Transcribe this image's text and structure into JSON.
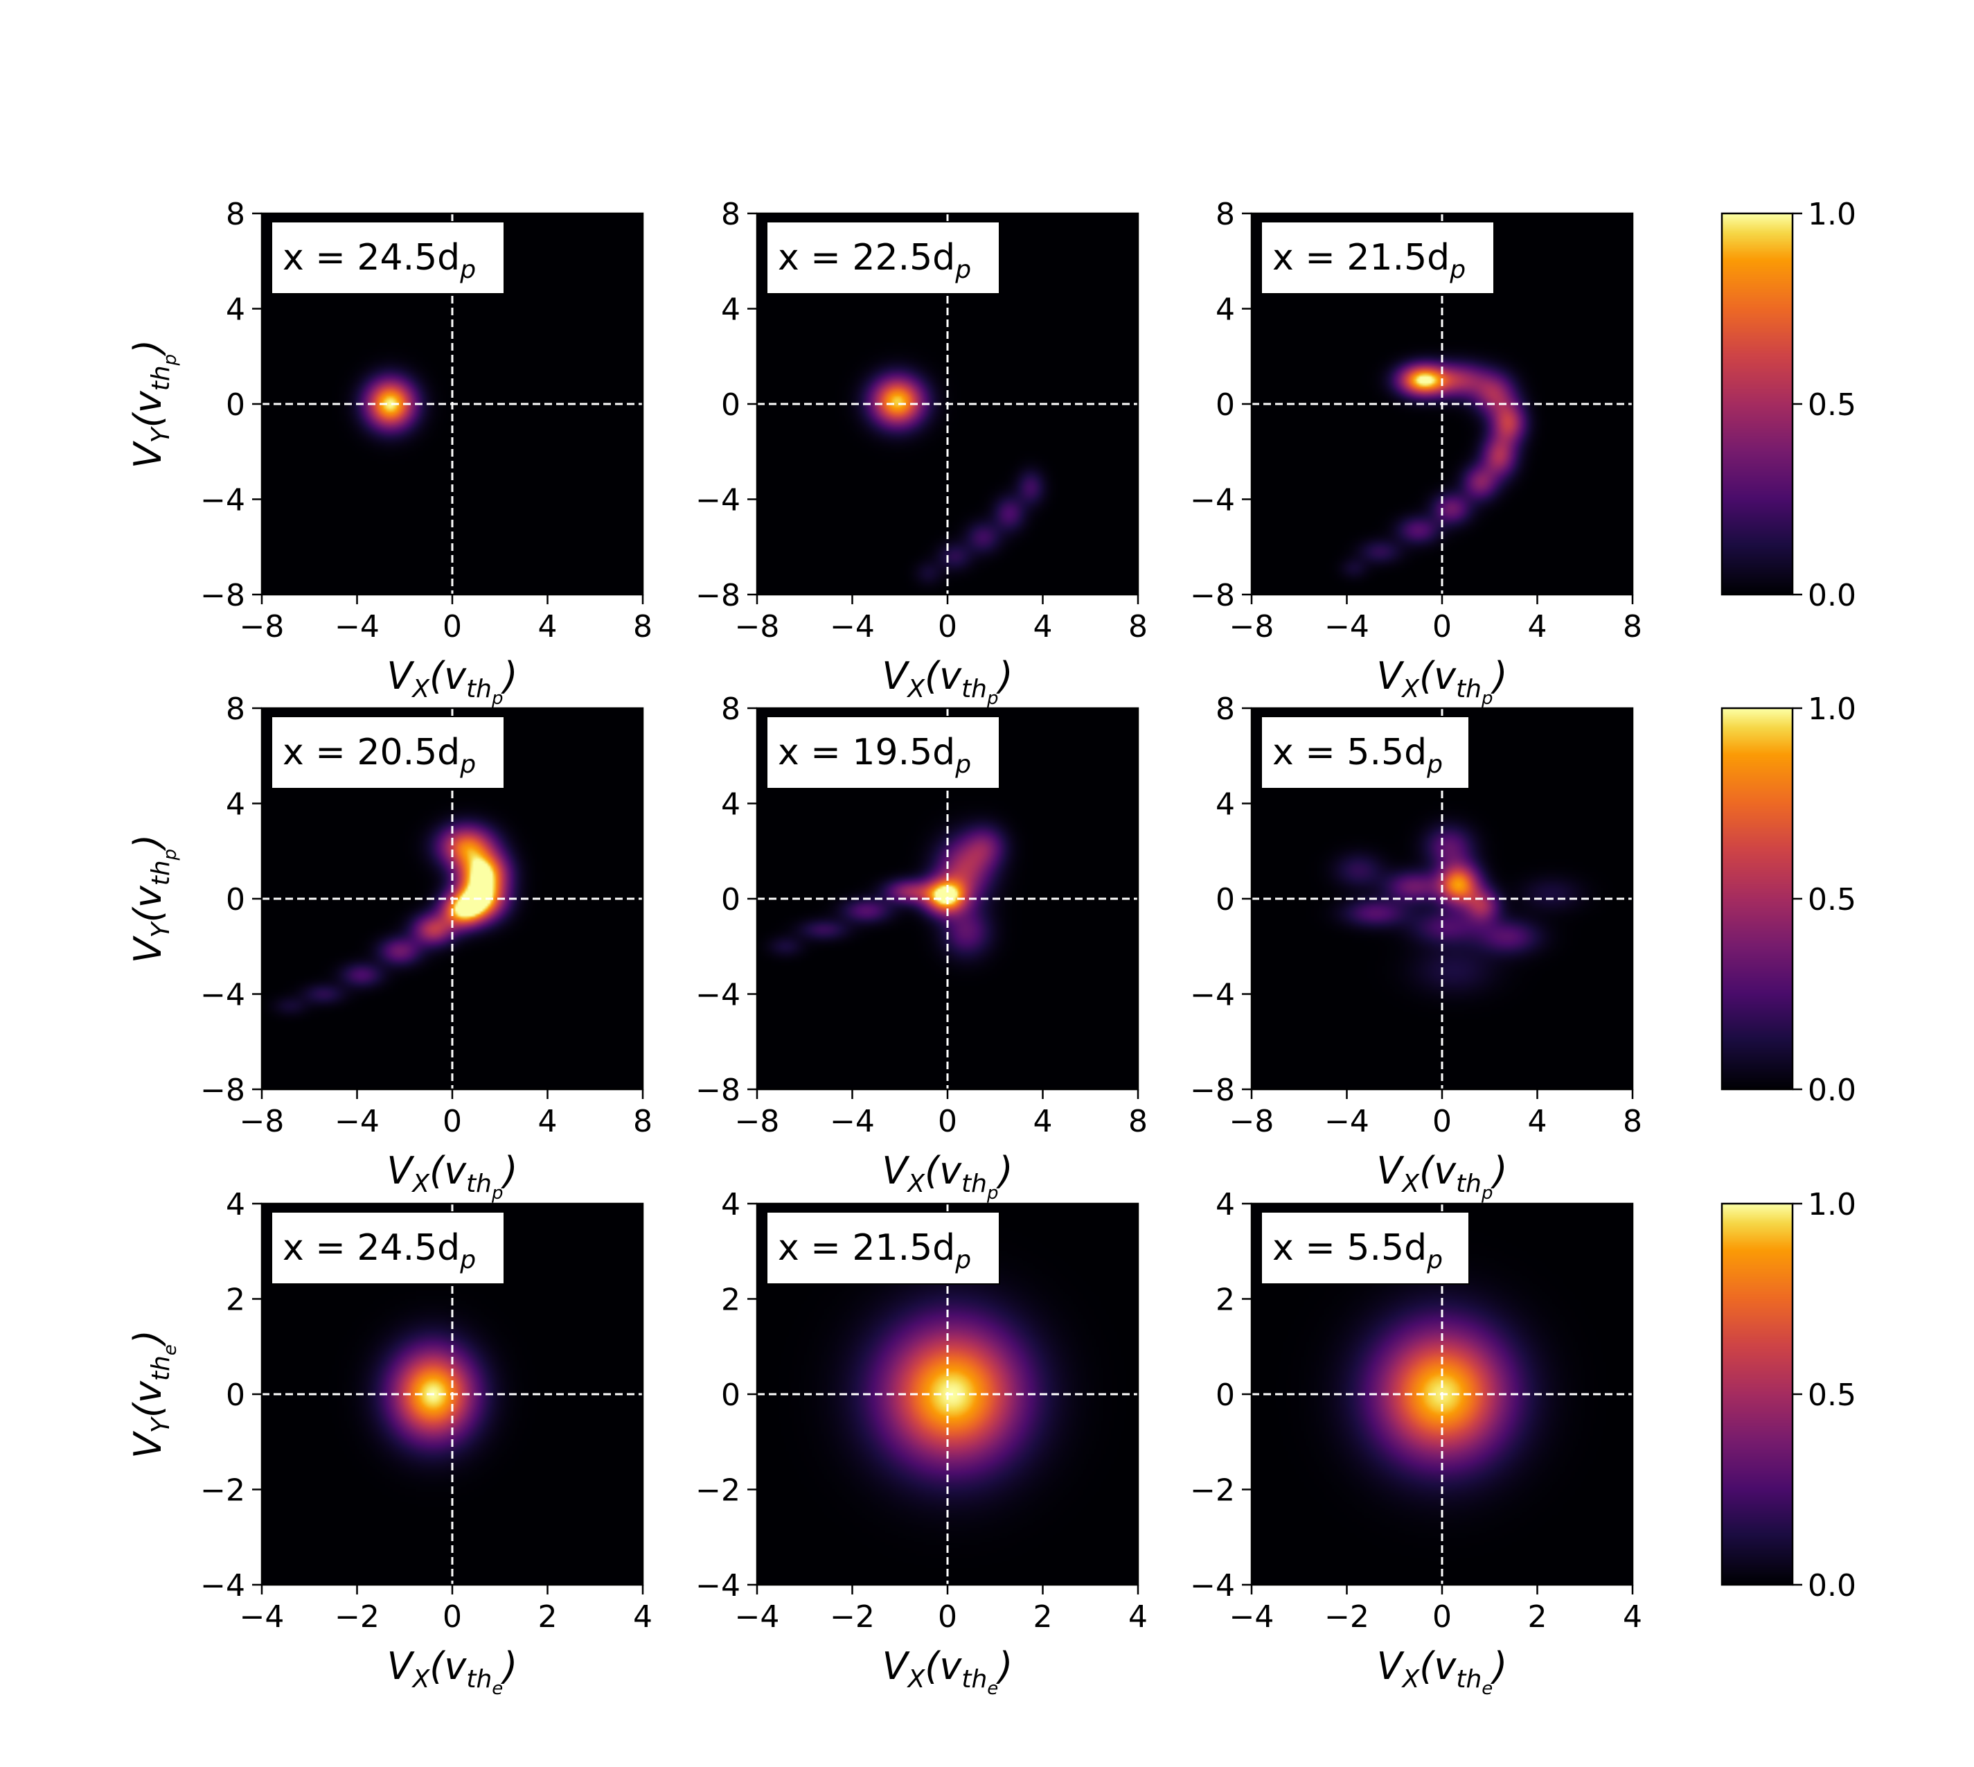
{
  "chart_data": {
    "type": "heatmap",
    "colormap": "inferno",
    "panels": [
      {
        "row": 0,
        "col": 0,
        "label": "x = 24.5d",
        "label_sub": "p",
        "species": "p",
        "xlim": [
          -8,
          8
        ],
        "ylim": [
          -8,
          8
        ],
        "xticks": [
          "−8",
          "−4",
          "0",
          "4",
          "8"
        ],
        "yticks": [
          "−8",
          "−4",
          "0",
          "4",
          "8"
        ],
        "blobs": [
          {
            "x": -2.6,
            "y": 0.0,
            "sx": 0.7,
            "sy": 0.7,
            "a": 1.0
          }
        ]
      },
      {
        "row": 0,
        "col": 1,
        "label": "x = 22.5d",
        "label_sub": "p",
        "species": "p",
        "xlim": [
          -8,
          8
        ],
        "ylim": [
          -8,
          8
        ],
        "xticks": [
          "−8",
          "−4",
          "0",
          "4",
          "8"
        ],
        "yticks": [
          "−8",
          "−4",
          "0",
          "4",
          "8"
        ],
        "blobs": [
          {
            "x": -2.1,
            "y": 0.1,
            "sx": 0.75,
            "sy": 0.7,
            "a": 0.95
          },
          {
            "x": 3.5,
            "y": -3.5,
            "sx": 0.4,
            "sy": 0.5,
            "a": 0.22
          },
          {
            "x": 2.6,
            "y": -4.6,
            "sx": 0.45,
            "sy": 0.5,
            "a": 0.25
          },
          {
            "x": 1.5,
            "y": -5.6,
            "sx": 0.5,
            "sy": 0.45,
            "a": 0.22
          },
          {
            "x": 0.3,
            "y": -6.4,
            "sx": 0.5,
            "sy": 0.4,
            "a": 0.17
          },
          {
            "x": -0.8,
            "y": -7.1,
            "sx": 0.4,
            "sy": 0.35,
            "a": 0.1
          }
        ]
      },
      {
        "row": 0,
        "col": 2,
        "label": "x = 21.5d",
        "label_sub": "p",
        "species": "p",
        "xlim": [
          -8,
          8
        ],
        "ylim": [
          -8,
          8
        ],
        "xticks": [
          "−8",
          "−4",
          "0",
          "4",
          "8"
        ],
        "yticks": [
          "−8",
          "−4",
          "0",
          "4",
          "8"
        ],
        "blobs": [
          {
            "x": -0.8,
            "y": 1.0,
            "sx": 0.7,
            "sy": 0.45,
            "a": 1.0
          },
          {
            "x": 0.8,
            "y": 1.0,
            "sx": 0.8,
            "sy": 0.5,
            "a": 0.45
          },
          {
            "x": 2.2,
            "y": 0.4,
            "sx": 0.6,
            "sy": 0.6,
            "a": 0.45
          },
          {
            "x": 2.8,
            "y": -0.8,
            "sx": 0.5,
            "sy": 0.6,
            "a": 0.55
          },
          {
            "x": 2.4,
            "y": -2.2,
            "sx": 0.5,
            "sy": 0.6,
            "a": 0.5
          },
          {
            "x": 1.6,
            "y": -3.3,
            "sx": 0.5,
            "sy": 0.5,
            "a": 0.4
          },
          {
            "x": 0.4,
            "y": -4.4,
            "sx": 0.55,
            "sy": 0.45,
            "a": 0.35
          },
          {
            "x": -1.0,
            "y": -5.3,
            "sx": 0.6,
            "sy": 0.4,
            "a": 0.28
          },
          {
            "x": -2.6,
            "y": -6.2,
            "sx": 0.6,
            "sy": 0.35,
            "a": 0.18
          },
          {
            "x": -3.7,
            "y": -6.9,
            "sx": 0.4,
            "sy": 0.3,
            "a": 0.1
          }
        ]
      },
      {
        "row": 1,
        "col": 0,
        "label": "x = 20.5d",
        "label_sub": "p",
        "species": "p",
        "xlim": [
          -8,
          8
        ],
        "ylim": [
          -8,
          8
        ],
        "xticks": [
          "−8",
          "−4",
          "0",
          "4",
          "8"
        ],
        "yticks": [
          "−8",
          "−4",
          "0",
          "4",
          "8"
        ],
        "blobs": [
          {
            "x": 0.6,
            "y": 2.2,
            "sx": 0.8,
            "sy": 0.6,
            "a": 0.75
          },
          {
            "x": 1.3,
            "y": 1.1,
            "sx": 0.7,
            "sy": 0.6,
            "a": 0.9
          },
          {
            "x": 1.2,
            "y": 0.0,
            "sx": 0.7,
            "sy": 0.6,
            "a": 0.95
          },
          {
            "x": 0.4,
            "y": -0.5,
            "sx": 0.6,
            "sy": 0.5,
            "a": 0.8
          },
          {
            "x": -0.8,
            "y": -1.3,
            "sx": 0.6,
            "sy": 0.45,
            "a": 0.55
          },
          {
            "x": -2.2,
            "y": -2.2,
            "sx": 0.6,
            "sy": 0.4,
            "a": 0.35
          },
          {
            "x": -3.8,
            "y": -3.2,
            "sx": 0.6,
            "sy": 0.35,
            "a": 0.25
          },
          {
            "x": -5.4,
            "y": -4.0,
            "sx": 0.6,
            "sy": 0.3,
            "a": 0.17
          },
          {
            "x": -6.8,
            "y": -4.5,
            "sx": 0.5,
            "sy": 0.28,
            "a": 0.1
          }
        ]
      },
      {
        "row": 1,
        "col": 1,
        "label": "x = 19.5d",
        "label_sub": "p",
        "species": "p",
        "xlim": [
          -8,
          8
        ],
        "ylim": [
          -8,
          8
        ],
        "xticks": [
          "−8",
          "−4",
          "0",
          "4",
          "8"
        ],
        "yticks": [
          "−8",
          "−4",
          "0",
          "4",
          "8"
        ],
        "blobs": [
          {
            "x": -0.1,
            "y": 0.1,
            "sx": 0.6,
            "sy": 0.5,
            "a": 1.0
          },
          {
            "x": 0.7,
            "y": 1.2,
            "sx": 0.8,
            "sy": 0.9,
            "a": 0.5
          },
          {
            "x": 1.6,
            "y": 2.2,
            "sx": 0.6,
            "sy": 0.6,
            "a": 0.3
          },
          {
            "x": 0.8,
            "y": -1.4,
            "sx": 0.7,
            "sy": 0.7,
            "a": 0.3
          },
          {
            "x": -1.6,
            "y": 0.3,
            "sx": 0.7,
            "sy": 0.35,
            "a": 0.45
          },
          {
            "x": -3.4,
            "y": -0.5,
            "sx": 0.7,
            "sy": 0.35,
            "a": 0.28
          },
          {
            "x": -5.2,
            "y": -1.3,
            "sx": 0.7,
            "sy": 0.3,
            "a": 0.2
          },
          {
            "x": -6.8,
            "y": -2.0,
            "sx": 0.5,
            "sy": 0.3,
            "a": 0.12
          }
        ]
      },
      {
        "row": 1,
        "col": 2,
        "label": "x = 5.5d",
        "label_sub": "p",
        "species": "p",
        "xlim": [
          -8,
          8
        ],
        "ylim": [
          -8,
          8
        ],
        "xticks": [
          "−8",
          "−4",
          "0",
          "4",
          "8"
        ],
        "yticks": [
          "−8",
          "−4",
          "0",
          "4",
          "8"
        ],
        "blobs": [
          {
            "x": 0.7,
            "y": 0.6,
            "sx": 0.6,
            "sy": 0.6,
            "a": 0.85
          },
          {
            "x": 1.7,
            "y": -0.3,
            "sx": 0.5,
            "sy": 0.5,
            "a": 0.45
          },
          {
            "x": 0.3,
            "y": 2.2,
            "sx": 0.7,
            "sy": 0.6,
            "a": 0.3
          },
          {
            "x": -1.2,
            "y": 0.5,
            "sx": 0.8,
            "sy": 0.45,
            "a": 0.35
          },
          {
            "x": -2.8,
            "y": -0.6,
            "sx": 0.9,
            "sy": 0.4,
            "a": 0.28
          },
          {
            "x": -3.5,
            "y": 1.2,
            "sx": 0.7,
            "sy": 0.5,
            "a": 0.18
          },
          {
            "x": 0.2,
            "y": -1.2,
            "sx": 1.0,
            "sy": 0.5,
            "a": 0.25
          },
          {
            "x": 2.8,
            "y": -1.6,
            "sx": 0.9,
            "sy": 0.5,
            "a": 0.28
          },
          {
            "x": 4.6,
            "y": 0.2,
            "sx": 0.9,
            "sy": 0.5,
            "a": 0.12
          },
          {
            "x": 0.5,
            "y": -3.0,
            "sx": 1.2,
            "sy": 0.7,
            "a": 0.13
          }
        ]
      },
      {
        "row": 2,
        "col": 0,
        "label": "x = 24.5d",
        "label_sub": "p",
        "species": "e",
        "xlim": [
          -4,
          4
        ],
        "ylim": [
          -4,
          4
        ],
        "xticks": [
          "−4",
          "−2",
          "0",
          "2",
          "4"
        ],
        "yticks": [
          "−4",
          "−2",
          "0",
          "2",
          "4"
        ],
        "blobs": [
          {
            "x": -0.4,
            "y": 0.0,
            "sx": 0.6,
            "sy": 0.65,
            "a": 1.0
          }
        ]
      },
      {
        "row": 2,
        "col": 1,
        "label": "x = 21.5d",
        "label_sub": "p",
        "species": "e",
        "xlim": [
          -4,
          4
        ],
        "ylim": [
          -4,
          4
        ],
        "xticks": [
          "−4",
          "−2",
          "0",
          "2",
          "4"
        ],
        "yticks": [
          "−4",
          "−2",
          "0",
          "2",
          "4"
        ],
        "blobs": [
          {
            "x": 0.1,
            "y": 0.0,
            "sx": 1.0,
            "sy": 1.0,
            "a": 1.0
          }
        ]
      },
      {
        "row": 2,
        "col": 2,
        "label": "x = 5.5d",
        "label_sub": "p",
        "species": "e",
        "xlim": [
          -4,
          4
        ],
        "ylim": [
          -4,
          4
        ],
        "xticks": [
          "−4",
          "−2",
          "0",
          "2",
          "4"
        ],
        "yticks": [
          "−4",
          "−2",
          "0",
          "2",
          "4"
        ],
        "blobs": [
          {
            "x": 0.0,
            "y": 0.0,
            "sx": 0.95,
            "sy": 0.95,
            "a": 0.98
          }
        ]
      }
    ],
    "ylabels": [
      {
        "row": 0,
        "base": "V",
        "base_sub": "Y",
        "paren_var": "v",
        "paren_sub": "th",
        "paren_sub2": "p"
      },
      {
        "row": 1,
        "base": "V",
        "base_sub": "Y",
        "paren_var": "v",
        "paren_sub": "th",
        "paren_sub2": "p"
      },
      {
        "row": 2,
        "base": "V",
        "base_sub": "Y",
        "paren_var": "v",
        "paren_sub": "th",
        "paren_sub2": "e"
      }
    ],
    "xlabels": [
      {
        "row": 0,
        "base": "V",
        "base_sub": "X",
        "paren_var": "v",
        "paren_sub": "th",
        "paren_sub2": "p"
      },
      {
        "row": 1,
        "base": "V",
        "base_sub": "X",
        "paren_var": "v",
        "paren_sub": "th",
        "paren_sub2": "p"
      },
      {
        "row": 2,
        "base": "V",
        "base_sub": "X",
        "paren_var": "v",
        "paren_sub": "th",
        "paren_sub2": "e"
      }
    ],
    "colorbars": [
      {
        "row": 0,
        "range": [
          0.0,
          1.0
        ],
        "ticks": [
          "0.0",
          "0.5",
          "1.0"
        ]
      },
      {
        "row": 1,
        "range": [
          0.0,
          1.0
        ],
        "ticks": [
          "0.0",
          "0.5",
          "1.0"
        ]
      },
      {
        "row": 2,
        "range": [
          0.0,
          1.0
        ],
        "ticks": [
          "0.0",
          "0.5",
          "1.0"
        ]
      }
    ],
    "reference_lines": {
      "x": 0,
      "y": 0,
      "style": "dashed",
      "color": "#ffffff"
    }
  }
}
